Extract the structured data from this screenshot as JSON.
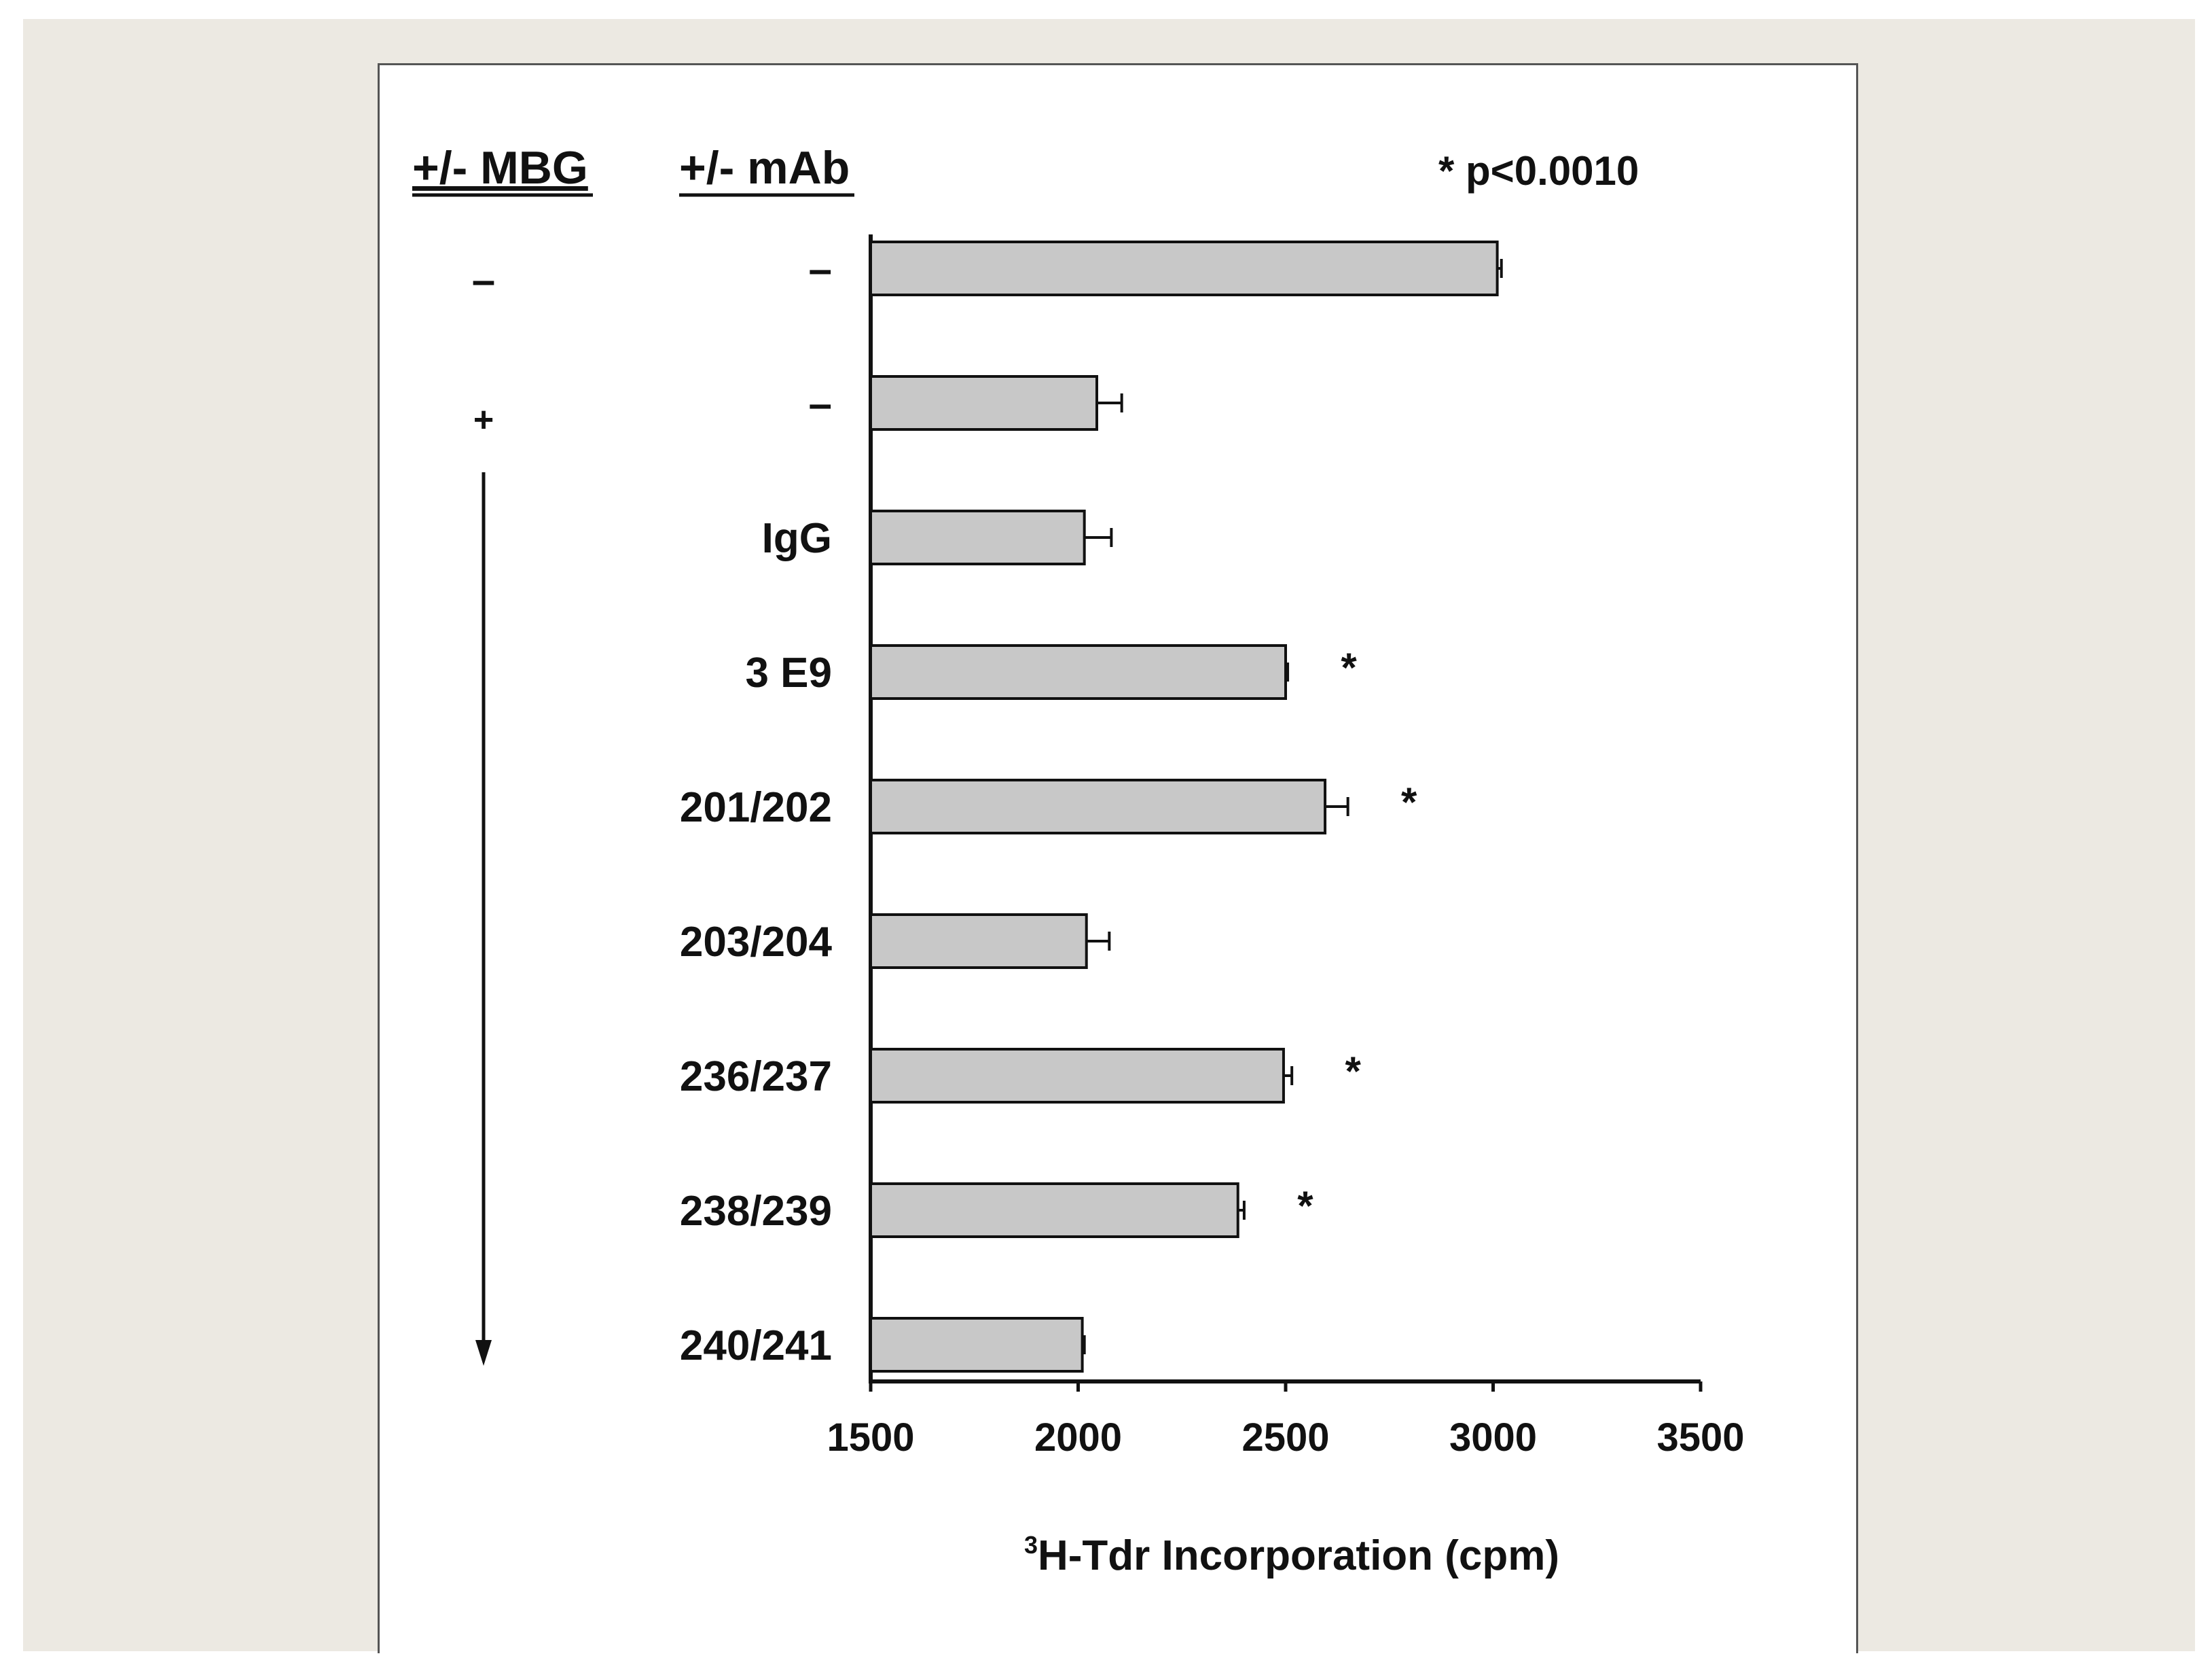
{
  "chart_data": {
    "type": "bar",
    "orientation": "horizontal",
    "column_headers": {
      "mbg": "+/- MBG",
      "mab": "+/- mAb"
    },
    "mbg_labels": [
      "–",
      "+"
    ],
    "categories": [
      "–",
      "–",
      "IgG",
      "3 E9",
      "201/202",
      "203/204",
      "236/237",
      "238/239",
      "240/241"
    ],
    "values": [
      3010,
      2045,
      2015,
      2500,
      2595,
      2020,
      2495,
      2385,
      2010
    ],
    "errors": [
      10,
      60,
      65,
      5,
      55,
      55,
      20,
      15,
      5
    ],
    "significant": [
      false,
      false,
      false,
      true,
      true,
      false,
      true,
      true,
      false
    ],
    "significance_marker": "*",
    "significance_note": "* p<0.0010",
    "xlabel_superscript": "3",
    "xlabel": "H-Tdr Incorporation (cpm)",
    "ylabel": "",
    "xlim": [
      1500,
      3500
    ],
    "xticks": [
      1500,
      2000,
      2500,
      3000,
      3500
    ],
    "grid": false,
    "colors": {
      "bar_fill": "#c8c8c8",
      "bar_stroke": "#111111",
      "axis": "#111111",
      "background": "#ece9e2"
    }
  }
}
